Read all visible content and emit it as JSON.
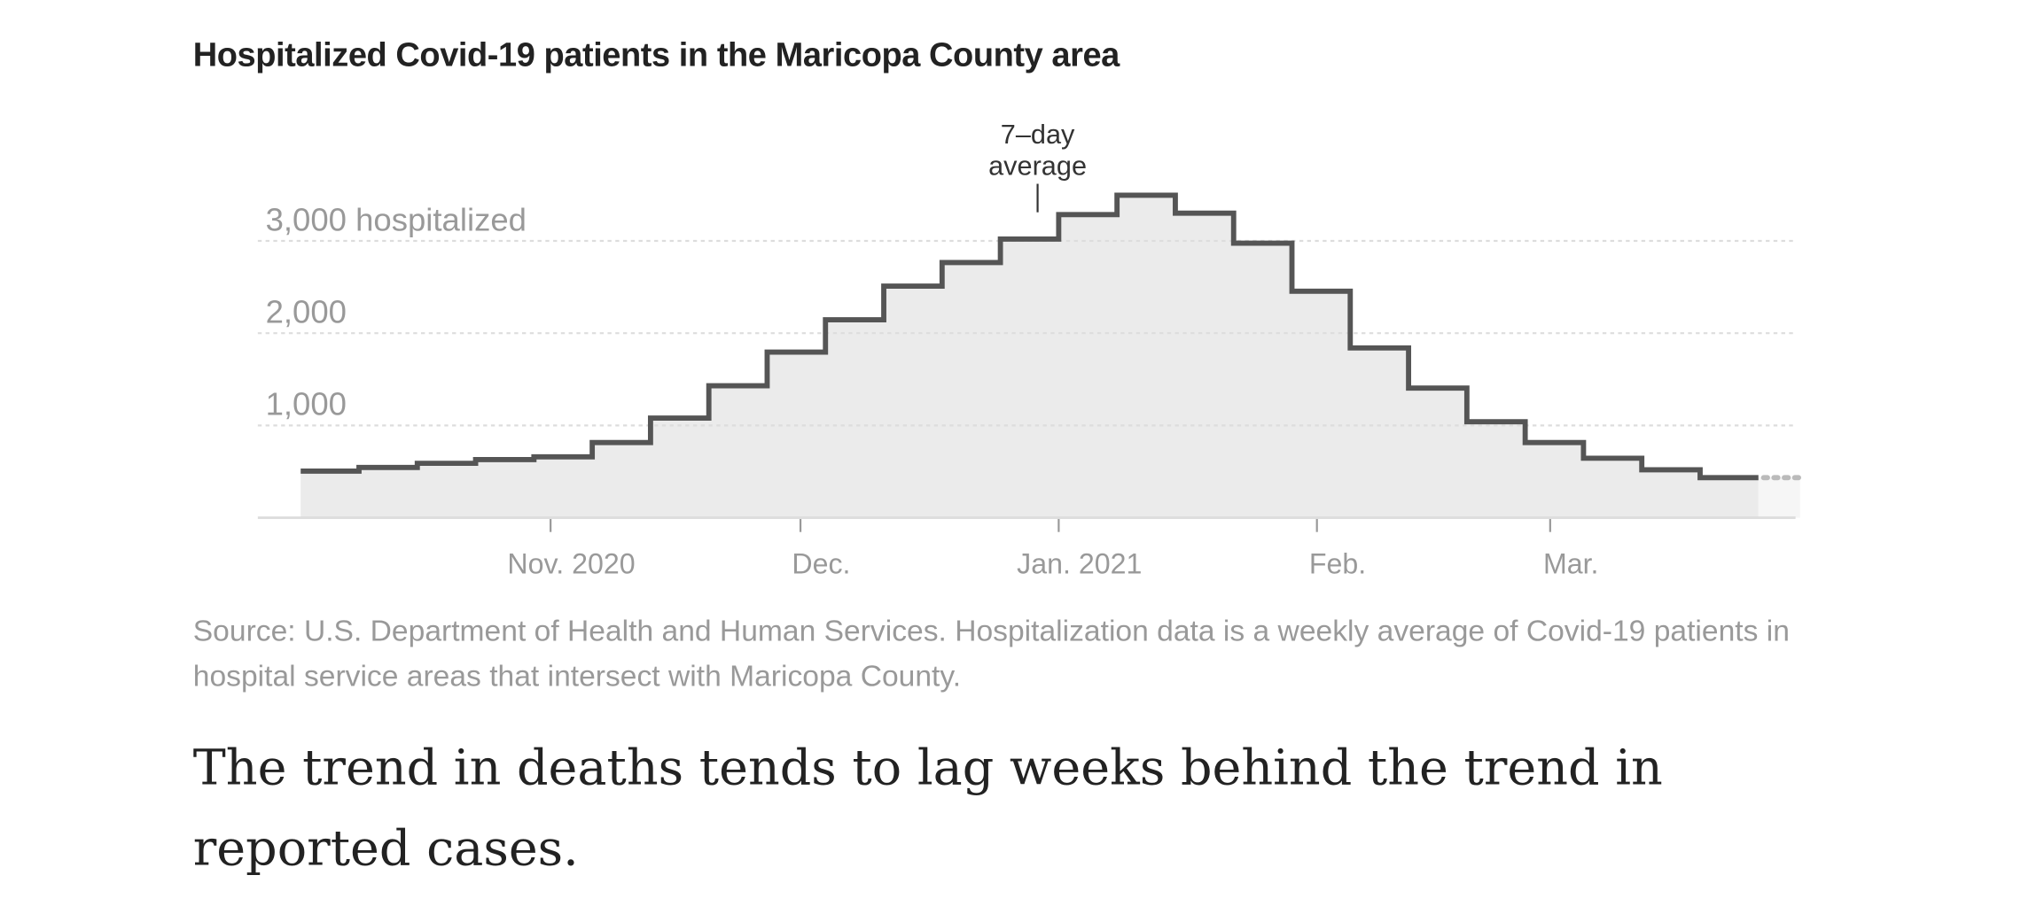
{
  "header": {
    "title": "Hospitalized Covid-19 patients in the Maricopa County area"
  },
  "chart_data": {
    "type": "line",
    "subtype": "step-area",
    "title": "Hospitalized Covid-19 patients in the Maricopa County area",
    "xlabel": "",
    "ylabel": "hospitalized",
    "ylim": [
      0,
      3500
    ],
    "y_ticks": [
      {
        "value": 1000,
        "label": "1,000"
      },
      {
        "value": 2000,
        "label": "2,000"
      },
      {
        "value": 3000,
        "label": "3,000 hospitalized"
      }
    ],
    "x_ticks": [
      {
        "day": 31,
        "label": "Nov. 2020"
      },
      {
        "day": 61,
        "label": "Dec."
      },
      {
        "day": 92,
        "label": "Jan. 2021"
      },
      {
        "day": 123,
        "label": "Feb."
      },
      {
        "day": 151,
        "label": "Mar."
      }
    ],
    "x_unit": "days since Oct. 1, 2020",
    "week_start_days": [
      1,
      8,
      15,
      22,
      29,
      36,
      43,
      50,
      57,
      64,
      71,
      78,
      85,
      92,
      99,
      106,
      113,
      120,
      127,
      134,
      141,
      148,
      155,
      162,
      169
    ],
    "series": [
      {
        "name": "7-day average",
        "values": [
          505,
          545,
          590,
          630,
          660,
          815,
          1080,
          1430,
          1795,
          2145,
          2510,
          2765,
          3020,
          3285,
          3495,
          3300,
          2975,
          2455,
          1840,
          1405,
          1040,
          815,
          645,
          520,
          435
        ]
      }
    ],
    "last_day": 176,
    "incomplete_until_day": 181,
    "annotation": {
      "text_line1": "7–day",
      "text_line2": "average",
      "day": 89
    },
    "grid": true,
    "legend": "none"
  },
  "footer": {
    "source": "Source: U.S. Department of Health and Human Services. Hospitalization data is a weekly average of Covid-19 patients in hospital service areas that intersect with Maricopa County.",
    "paragraph": "The trend in deaths tends to lag weeks behind the trend in reported cases."
  }
}
